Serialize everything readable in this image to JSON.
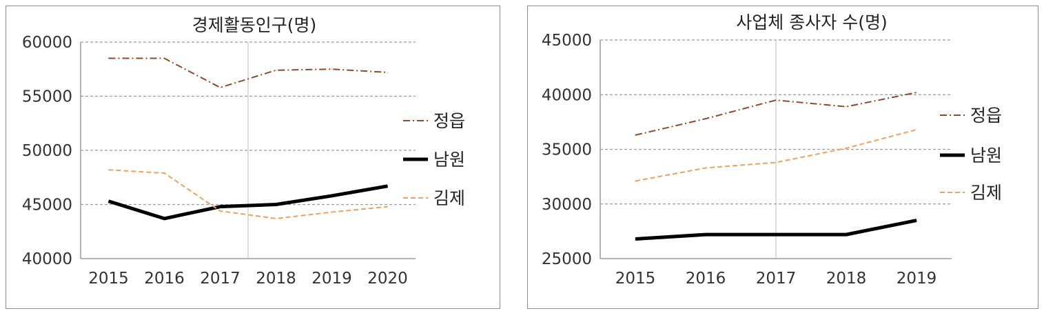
{
  "colors": {
    "jeongeup": "#8b4a2b",
    "namwon": "#000000",
    "gimje": "#f0a060",
    "grid": "#9a9a9a",
    "frame": "#8c8c8c"
  },
  "chart_data": [
    {
      "type": "line",
      "title": "경제활동인구(명)",
      "categories": [
        "2015",
        "2016",
        "2017",
        "2018",
        "2019",
        "2020"
      ],
      "ylim": [
        40000,
        60000
      ],
      "yticks": [
        40000,
        45000,
        50000,
        55000,
        60000
      ],
      "grid": true,
      "legend_position": "right",
      "series": [
        {
          "name": "정읍",
          "color": "#8b4a2b",
          "style": "dashdot",
          "values": [
            58500,
            58500,
            55800,
            57400,
            57500,
            57200
          ]
        },
        {
          "name": "남원",
          "color": "#000000",
          "style": "solid",
          "values": [
            45300,
            43700,
            44800,
            45000,
            45800,
            46700
          ]
        },
        {
          "name": "김제",
          "color": "#f0a060",
          "style": "dashed",
          "values": [
            48200,
            47900,
            44400,
            43700,
            44300,
            44800
          ]
        }
      ]
    },
    {
      "type": "line",
      "title": "사업체 종사자 수(명)",
      "categories": [
        "2015",
        "2016",
        "2017",
        "2018",
        "2019"
      ],
      "ylim": [
        25000,
        45000
      ],
      "yticks": [
        25000,
        30000,
        35000,
        40000,
        45000
      ],
      "grid": true,
      "legend_position": "right",
      "series": [
        {
          "name": "정읍",
          "color": "#8b4a2b",
          "style": "dashdot",
          "values": [
            36300,
            37800,
            39500,
            38900,
            40200
          ]
        },
        {
          "name": "남원",
          "color": "#000000",
          "style": "solid",
          "values": [
            26800,
            27200,
            27200,
            27200,
            28500
          ]
        },
        {
          "name": "김제",
          "color": "#f0a060",
          "style": "dashed",
          "values": [
            32100,
            33300,
            33800,
            35100,
            36800
          ]
        }
      ]
    }
  ]
}
